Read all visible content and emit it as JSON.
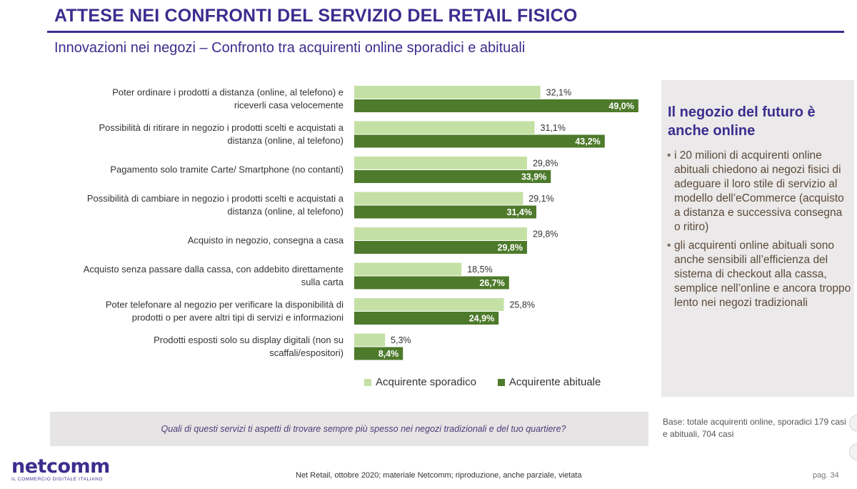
{
  "header": {
    "title": "ATTESE NEI CONFRONTI DEL SERVIZIO DEL RETAIL FISICO",
    "subtitle": "Innovazioni nei negozi – Confronto tra acquirenti online sporadici e abituali"
  },
  "colors": {
    "brand": "#3c2d8e",
    "sporadic": "#c5e0a5",
    "habitual": "#4d7a2b",
    "panel": "#ebe9e9"
  },
  "chart_data": {
    "type": "bar",
    "orientation": "horizontal",
    "title": "Innovazioni nei negozi – Confronto tra acquirenti online sporadici e abituali",
    "xlim": [
      0,
      50
    ],
    "unit": "%",
    "categories": [
      [
        "Poter ordinare i prodotti a distanza (online, al telefono) e",
        "riceverli casa velocemente"
      ],
      [
        "Possibilità di ritirare in negozio i prodotti scelti e acquistati a",
        "distanza (online, al telefono)"
      ],
      [
        "Pagamento solo tramite Carte/ Smartphone (no contanti)"
      ],
      [
        "Possibilità di cambiare in negozio i prodotti scelti e acquistati a",
        "distanza (online, al telefono)"
      ],
      [
        "Acquisto in negozio, consegna a casa"
      ],
      [
        "Acquisto senza passare dalla cassa, con addebito direttamente",
        "sulla carta"
      ],
      [
        "Poter telefonare al negozio per verificare la disponibilità di",
        "prodotti o per avere altri tipi di servizi e informazioni"
      ],
      [
        "Prodotti esposti solo su display digitali (non su",
        "scaffali/espositori)"
      ]
    ],
    "series": [
      {
        "name": "Acquirente sporadico",
        "values": [
          32.1,
          31.1,
          29.8,
          29.1,
          29.8,
          18.5,
          25.8,
          5.3
        ],
        "labels": [
          "32,1%",
          "31,1%",
          "29,8%",
          "29,1%",
          "29,8%",
          "18,5%",
          "25,8%",
          "5,3%"
        ]
      },
      {
        "name": "Acquirente abituale",
        "values": [
          49.0,
          43.2,
          33.9,
          31.4,
          29.8,
          26.7,
          24.9,
          8.4
        ],
        "labels": [
          "49,0%",
          "43,2%",
          "33,9%",
          "31,4%",
          "29,8%",
          "26,7%",
          "24,9%",
          "8,4%"
        ]
      }
    ]
  },
  "sidebar": {
    "heading_line1": "Il negozio del futuro è",
    "heading_line2": "anche online",
    "bullets": [
      "i 20 milioni di acquirenti online abituali chiedono ai negozi fisici di adeguare il loro stile di servizio al modello dell’eCommerce (acquisto a distanza e successiva consegna o ritiro)",
      "gli acquirenti online abituali sono anche sensibili all’efficienza del sistema di checkout alla cassa, semplice nell’online e ancora troppo lento nei negozi tradizionali"
    ]
  },
  "question": "Quali di questi servizi ti aspetti di trovare sempre più spesso nei negozi tradizionali e del tuo quartiere?",
  "base_note": "Base: totale acquirenti online, sporadici 179 casi e abituali, 704 casi",
  "logo": {
    "wordmark": "netcomm",
    "tagline": "IL COMMERCIO DIGITALE ITALIANO"
  },
  "footer": {
    "source": "Net Retail, ottobre 2020; materiale Netcomm; riproduzione, anche parziale, vietata",
    "page": "pag. 34"
  }
}
